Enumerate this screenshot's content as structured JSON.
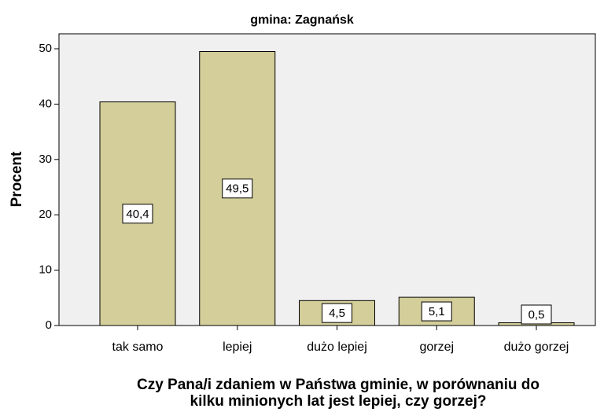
{
  "chart_data": {
    "type": "bar",
    "title": "gmina: Zagnańsk",
    "ylabel": "Procent",
    "xlabel": [
      "Czy Pana/i zdaniem w Państwa gminie, w porównaniu do",
      "kilku minionych lat jest lepiej, czy gorzej?"
    ],
    "categories": [
      "tak samo",
      "lepiej",
      "dużo lepiej",
      "gorzej",
      "dużo gorzej"
    ],
    "values": [
      40.4,
      49.5,
      4.5,
      5.1,
      0.5
    ],
    "value_labels": [
      "40,4",
      "49,5",
      "4,5",
      "5,1",
      "0,5"
    ],
    "color": "#d3ce9a",
    "ylim": [
      0,
      52.7
    ],
    "yticks": [
      0,
      10,
      20,
      30,
      40,
      50
    ],
    "grid": false
  }
}
